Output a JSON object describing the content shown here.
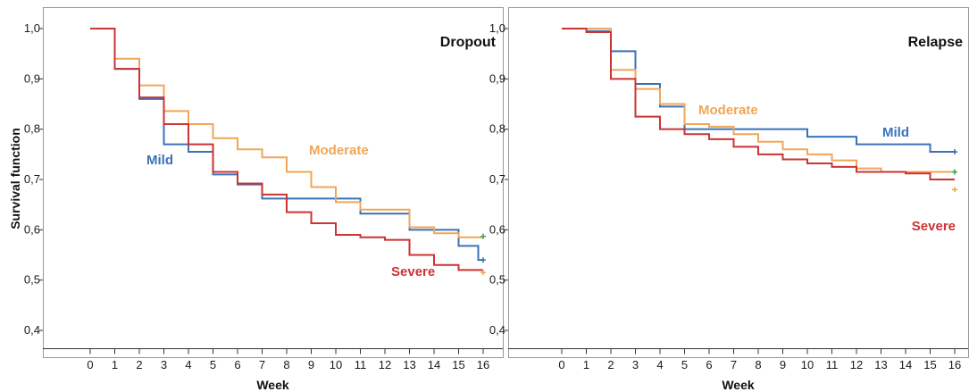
{
  "y_axis_title": "Survival function",
  "chart_data": [
    {
      "type": "line",
      "title": "Dropout",
      "xlabel": "Week",
      "ylabel": "Survival function",
      "xlim": [
        0,
        16
      ],
      "ylim": [
        0.4,
        1.0
      ],
      "x_ticks": [
        "0",
        "1",
        "2",
        "3",
        "4",
        "5",
        "6",
        "7",
        "8",
        "9",
        "10",
        "11",
        "12",
        "13",
        "14",
        "15",
        "16"
      ],
      "y_ticks": [
        "0,4",
        "0,5",
        "0,6",
        "0,7",
        "0,8",
        "0,9",
        "1,0"
      ],
      "grid": false,
      "series": [
        {
          "name": "Mild",
          "color": "#3a72b8",
          "censor_color": "#3a72b8",
          "steps": [
            [
              0,
              1.0
            ],
            [
              1,
              0.92
            ],
            [
              2,
              0.86
            ],
            [
              3,
              0.77
            ],
            [
              4,
              0.755
            ],
            [
              5,
              0.71
            ],
            [
              6,
              0.69
            ],
            [
              7,
              0.662
            ],
            [
              8,
              0.662
            ],
            [
              10,
              0.662
            ],
            [
              11,
              0.632
            ],
            [
              12,
              0.632
            ],
            [
              13,
              0.6
            ],
            [
              14,
              0.6
            ],
            [
              15,
              0.568
            ],
            [
              15.8,
              0.54
            ]
          ],
          "end": 16,
          "censor_y": 0.54
        },
        {
          "name": "Moderate",
          "color": "#f0a658",
          "censor_color": "#3aaa5a",
          "steps": [
            [
              0,
              1.0
            ],
            [
              1,
              0.94
            ],
            [
              2,
              0.887
            ],
            [
              3,
              0.836
            ],
            [
              4,
              0.81
            ],
            [
              5,
              0.782
            ],
            [
              6,
              0.76
            ],
            [
              7,
              0.744
            ],
            [
              8,
              0.715
            ],
            [
              9,
              0.685
            ],
            [
              10,
              0.655
            ],
            [
              11,
              0.64
            ],
            [
              12,
              0.64
            ],
            [
              13,
              0.605
            ],
            [
              14,
              0.593
            ],
            [
              15,
              0.585
            ]
          ],
          "end": 16,
          "censor_y": 0.587
        },
        {
          "name": "Severe",
          "color": "#cc3333",
          "censor_color": "#f0a658",
          "steps": [
            [
              0,
              1.0
            ],
            [
              1,
              0.92
            ],
            [
              2,
              0.863
            ],
            [
              3,
              0.81
            ],
            [
              4,
              0.77
            ],
            [
              5,
              0.715
            ],
            [
              6,
              0.692
            ],
            [
              7,
              0.67
            ],
            [
              8,
              0.635
            ],
            [
              9,
              0.613
            ],
            [
              10,
              0.59
            ],
            [
              11,
              0.585
            ],
            [
              12,
              0.58
            ],
            [
              13,
              0.55
            ],
            [
              14,
              0.53
            ],
            [
              15,
              0.52
            ]
          ],
          "end": 16,
          "censor_y": 0.515
        }
      ]
    },
    {
      "type": "line",
      "title": "Relapse",
      "xlabel": "Week",
      "ylabel": "",
      "xlim": [
        0,
        16
      ],
      "ylim": [
        0.4,
        1.0
      ],
      "x_ticks": [
        "0",
        "1",
        "2",
        "3",
        "4",
        "5",
        "6",
        "7",
        "8",
        "9",
        "10",
        "11",
        "12",
        "13",
        "14",
        "15",
        "16"
      ],
      "y_ticks": [
        "0,4",
        "0,5",
        "0,6",
        "0,7",
        "0,8",
        "0,9",
        "1,0"
      ],
      "grid": false,
      "series": [
        {
          "name": "Mild",
          "color": "#3a72b8",
          "censor_color": "#3a72b8",
          "steps": [
            [
              0,
              1.0
            ],
            [
              1,
              0.995
            ],
            [
              2,
              0.955
            ],
            [
              3,
              0.89
            ],
            [
              4,
              0.845
            ],
            [
              5,
              0.8
            ],
            [
              6,
              0.8
            ],
            [
              10,
              0.785
            ],
            [
              12,
              0.77
            ],
            [
              15,
              0.755
            ]
          ],
          "end": 16,
          "censor_y": 0.755
        },
        {
          "name": "Moderate",
          "color": "#f0a658",
          "censor_color": "#3aaa5a",
          "steps": [
            [
              0,
              1.0
            ],
            [
              1,
              1.0
            ],
            [
              2,
              0.918
            ],
            [
              3,
              0.88
            ],
            [
              4,
              0.85
            ],
            [
              5,
              0.81
            ],
            [
              6,
              0.805
            ],
            [
              7,
              0.79
            ],
            [
              8,
              0.775
            ],
            [
              9,
              0.76
            ],
            [
              10,
              0.75
            ],
            [
              11,
              0.738
            ],
            [
              12,
              0.722
            ],
            [
              13,
              0.715
            ],
            [
              14,
              0.715
            ],
            [
              15,
              0.715
            ]
          ],
          "end": 16,
          "censor_y": 0.715
        },
        {
          "name": "Severe",
          "color": "#cc3333",
          "censor_color": "#f0a658",
          "steps": [
            [
              0,
              1.0
            ],
            [
              1,
              0.993
            ],
            [
              2,
              0.9
            ],
            [
              3,
              0.825
            ],
            [
              4,
              0.8
            ],
            [
              5,
              0.79
            ],
            [
              6,
              0.78
            ],
            [
              7,
              0.765
            ],
            [
              8,
              0.75
            ],
            [
              9,
              0.74
            ],
            [
              10,
              0.732
            ],
            [
              11,
              0.725
            ],
            [
              12,
              0.715
            ],
            [
              13,
              0.715
            ],
            [
              14,
              0.712
            ],
            [
              15,
              0.7
            ]
          ],
          "end": 16,
          "censor_y": 0.68
        }
      ]
    }
  ]
}
